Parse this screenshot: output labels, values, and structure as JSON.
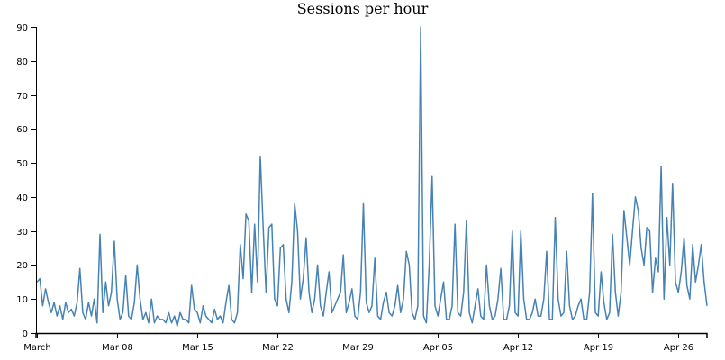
{
  "chart_data": {
    "type": "line",
    "title": "Sessions per hour",
    "xlabel": "",
    "ylabel": "",
    "xlim": [
      "2020-02-29T22:00",
      "2020-04-28T12:00"
    ],
    "ylim": [
      0,
      90
    ],
    "grid": false,
    "color": "#4682b4",
    "y_ticks": [
      0,
      10,
      20,
      30,
      40,
      50,
      60,
      70,
      80,
      90
    ],
    "x_ticks": [
      {
        "date": "2020-03-01",
        "label": "March"
      },
      {
        "date": "2020-03-08",
        "label": "Mar 08"
      },
      {
        "date": "2020-03-15",
        "label": "Mar 15"
      },
      {
        "date": "2020-03-22",
        "label": "Mar 22"
      },
      {
        "date": "2020-03-29",
        "label": "Mar 29"
      },
      {
        "date": "2020-04-05",
        "label": "Apr 05"
      },
      {
        "date": "2020-04-12",
        "label": "Apr 12"
      },
      {
        "date": "2020-04-19",
        "label": "Apr 19"
      },
      {
        "date": "2020-04-26",
        "label": "Apr 26"
      }
    ],
    "series": [
      {
        "start": "2020-03-01T00:00",
        "step_hours": 6,
        "values": [
          15,
          16,
          8,
          13,
          9,
          6,
          9,
          5,
          8,
          4,
          9,
          6,
          7,
          5,
          9,
          19,
          6,
          4,
          9,
          5,
          10,
          3,
          29,
          6,
          15,
          8,
          12,
          27,
          10,
          4,
          6,
          17,
          5,
          4,
          9,
          20,
          10,
          4,
          6,
          3,
          10,
          3,
          5,
          4,
          4,
          3,
          6,
          3,
          5,
          2,
          6,
          4,
          4,
          3,
          14,
          7,
          6,
          3,
          8,
          5,
          4,
          3,
          7,
          4,
          5,
          3,
          9,
          14,
          4,
          3,
          6,
          26,
          16,
          35,
          33,
          12,
          32,
          15,
          52,
          31,
          12,
          31,
          32,
          10,
          8,
          25,
          26,
          10,
          6,
          15,
          38,
          30,
          10,
          16,
          28,
          12,
          6,
          10,
          20,
          8,
          5,
          12,
          18,
          6,
          8,
          10,
          12,
          23,
          6,
          9,
          13,
          5,
          4,
          12,
          38,
          9,
          6,
          8,
          22,
          5,
          4,
          9,
          12,
          6,
          5,
          8,
          14,
          6,
          10,
          24,
          20,
          6,
          4,
          8,
          90,
          5,
          3,
          20,
          46,
          8,
          5,
          10,
          15,
          4,
          4,
          8,
          32,
          6,
          5,
          12,
          33,
          6,
          3,
          8,
          13,
          5,
          4,
          20,
          8,
          4,
          5,
          10,
          19,
          4,
          4,
          8,
          30,
          6,
          5,
          30,
          10,
          4,
          4,
          6,
          10,
          5,
          5,
          10,
          24,
          4,
          4,
          34,
          10,
          5,
          6,
          24,
          8,
          4,
          5,
          8,
          10,
          4,
          4,
          12,
          41,
          6,
          5,
          18,
          9,
          4,
          6,
          29,
          12,
          5,
          12,
          36,
          28,
          20,
          30,
          40,
          36,
          25,
          20,
          31,
          30,
          12,
          22,
          18,
          49,
          10,
          34,
          20,
          44,
          15,
          12,
          18,
          28,
          14,
          10,
          26,
          15,
          20,
          26,
          15,
          8
        ]
      }
    ]
  }
}
